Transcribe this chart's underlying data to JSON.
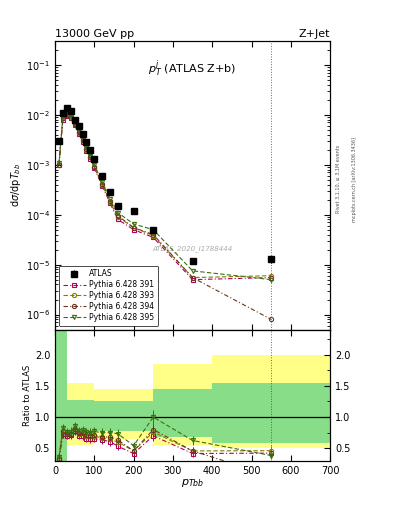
{
  "title_left": "13000 GeV pp",
  "title_right": "Z+Jet",
  "annotation": "$p_T^j$ (ATLAS Z+b)",
  "watermark": "ATLAS_2020_I1788444",
  "right_label1": "Rivet 3.1.10, ≥ 3.1M events",
  "right_label2": "mcplots.cern.ch [arXiv:1306.3436]",
  "atlas_x": [
    10,
    20,
    30,
    40,
    50,
    60,
    70,
    80,
    90,
    100,
    120,
    140,
    160,
    200,
    250,
    350,
    550
  ],
  "atlas_y": [
    0.003,
    0.011,
    0.0135,
    0.012,
    0.008,
    0.006,
    0.0042,
    0.0029,
    0.002,
    0.0013,
    0.0006,
    0.00028,
    0.00015,
    0.00012,
    5e-05,
    1.2e-05,
    1.3e-05
  ],
  "atlas_yerr": [
    0.0004,
    0.001,
    0.0012,
    0.0011,
    0.0007,
    0.0005,
    0.00035,
    0.00025,
    0.00018,
    0.00012,
    6e-05,
    3e-05,
    1.5e-05,
    1.2e-05,
    6e-06,
    1.5e-06,
    2e-06
  ],
  "py391_x": [
    10,
    20,
    30,
    40,
    50,
    60,
    70,
    80,
    90,
    100,
    120,
    140,
    160,
    200,
    250,
    350,
    550
  ],
  "py391_y": [
    0.001,
    0.008,
    0.0095,
    0.0085,
    0.0062,
    0.0042,
    0.0029,
    0.0019,
    0.0013,
    0.00085,
    0.00038,
    0.00017,
    8e-05,
    5e-05,
    3.5e-05,
    5e-06,
    5.5e-06
  ],
  "py393_x": [
    10,
    20,
    30,
    40,
    50,
    60,
    70,
    80,
    90,
    100,
    120,
    140,
    160,
    200,
    250,
    350,
    550
  ],
  "py393_y": [
    0.001,
    0.0085,
    0.0098,
    0.0088,
    0.0065,
    0.0044,
    0.0031,
    0.002,
    0.0014,
    0.0009,
    0.0004,
    0.00018,
    9e-05,
    5.5e-05,
    3.8e-05,
    5.5e-06,
    6e-06
  ],
  "py394_x": [
    10,
    20,
    30,
    40,
    50,
    60,
    70,
    80,
    90,
    100,
    120,
    140,
    160,
    200,
    250,
    350,
    550
  ],
  "py394_y": [
    0.001,
    0.0085,
    0.0098,
    0.0088,
    0.0065,
    0.0045,
    0.0031,
    0.00205,
    0.0014,
    0.00092,
    0.00041,
    0.00019,
    9.5e-05,
    5.5e-05,
    4e-05,
    5.5e-06,
    8e-07
  ],
  "py395_x": [
    10,
    20,
    30,
    40,
    50,
    60,
    70,
    80,
    90,
    100,
    120,
    140,
    160,
    200,
    250,
    350,
    550
  ],
  "py395_y": [
    0.0011,
    0.009,
    0.0102,
    0.0092,
    0.0068,
    0.0047,
    0.0033,
    0.0022,
    0.0015,
    0.001,
    0.00045,
    0.00021,
    0.00011,
    6.5e-05,
    5e-05,
    7.5e-06,
    5e-06
  ],
  "color_391": "#b0005a",
  "color_393": "#808000",
  "color_394": "#6b3520",
  "color_395": "#3a7010",
  "color_atlas": "black",
  "xlim": [
    0,
    700
  ],
  "ylim_main": [
    5e-07,
    0.3
  ],
  "ylim_ratio": [
    0.3,
    2.4
  ],
  "band_edges": [
    0,
    30,
    100,
    250,
    400,
    700
  ],
  "yellow_lo": [
    0.3,
    0.55,
    0.65,
    0.55,
    0.5,
    0.5
  ],
  "yellow_hi": [
    2.4,
    1.55,
    1.45,
    1.85,
    2.0,
    2.0
  ],
  "green_lo": [
    0.3,
    0.72,
    0.78,
    0.68,
    0.58,
    0.58
  ],
  "green_hi": [
    2.4,
    1.28,
    1.25,
    1.45,
    1.55,
    1.55
  ]
}
